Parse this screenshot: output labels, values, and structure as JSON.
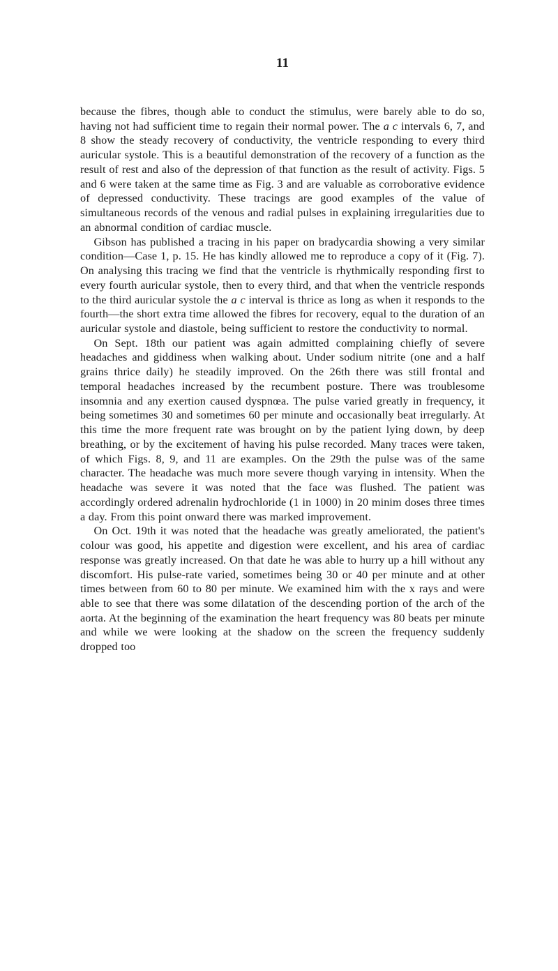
{
  "page_number": "11",
  "paragraphs": [
    "because the fibres, though able to conduct the stimulus, were barely able to do so, having not had sufficient time to regain their normal power. The <span class=\"italic\">a c</span> intervals 6, 7, and 8 show the steady recovery of conductivity, the ventricle responding to every third auricular systole. This is a beautiful demonstration of the recovery of a function as the result of rest and also of the depression of that function as the result of activity. Figs. 5 and 6 were taken at the same time as Fig. 3 and are valuable as corroborative evidence of depressed conductivity. These tracings are good examples of the value of simultaneous records of the venous and radial pulses in explaining irregularities due to an abnormal condition of cardiac muscle.",
    "Gibson has published a tracing in his paper on bradycardia showing a very similar condition—Case 1, p. 15. He has kindly allowed me to reproduce a copy of it (Fig. 7). On analysing this tracing we find that the ventricle is rhythmically responding first to every fourth auricular systole, then to every third, and that when the ventricle responds to the third auricular systole the <span class=\"italic\">a c</span> interval is thrice as long as when it responds to the fourth—the short extra time allowed the fibres for recovery, equal to the duration of an auricular systole and diastole, being sufficient to restore the conductivity to normal.",
    "On Sept. 18th our patient was again admitted complaining chiefly of severe headaches and giddiness when walking about. Under sodium nitrite (one and a half grains thrice daily) he steadily improved. On the 26th there was still frontal and temporal headaches increased by the recumbent posture. There was troublesome insomnia and any exertion caused dyspnœa. The pulse varied greatly in frequency, it being sometimes 30 and sometimes 60 per minute and occasionally beat irregularly. At this time the more frequent rate was brought on by the patient lying down, by deep breathing, or by the excitement of having his pulse recorded. Many traces were taken, of which Figs. 8, 9, and 11 are examples. On the 29th the pulse was of the same character. The headache was much more severe though varying in intensity. When the headache was severe it was noted that the face was flushed. The patient was accordingly ordered adrenalin hydrochloride (1 in 1000) in 20 minim doses three times a day. From this point onward there was marked improvement.",
    "On Oct. 19th it was noted that the headache was greatly ameliorated, the patient's colour was good, his appetite and digestion were excellent, and his area of cardiac response was greatly increased. On that date he was able to hurry up a hill without any discomfort. His pulse-rate varied, sometimes being 30 or 40 per minute and at other times between from 60 to 80 per minute. We examined him with the x rays and were able to see that there was some dilatation of the descending portion of the arch of the aorta. At the beginning of the examination the heart frequency was 80 beats per minute and while we were looking at the shadow on the screen the frequency suddenly dropped too"
  ],
  "text_color": "#1a1a1a",
  "background_color": "#ffffff",
  "font_size_body": 16.2,
  "font_size_pagenum": 19,
  "line_height": 1.28
}
